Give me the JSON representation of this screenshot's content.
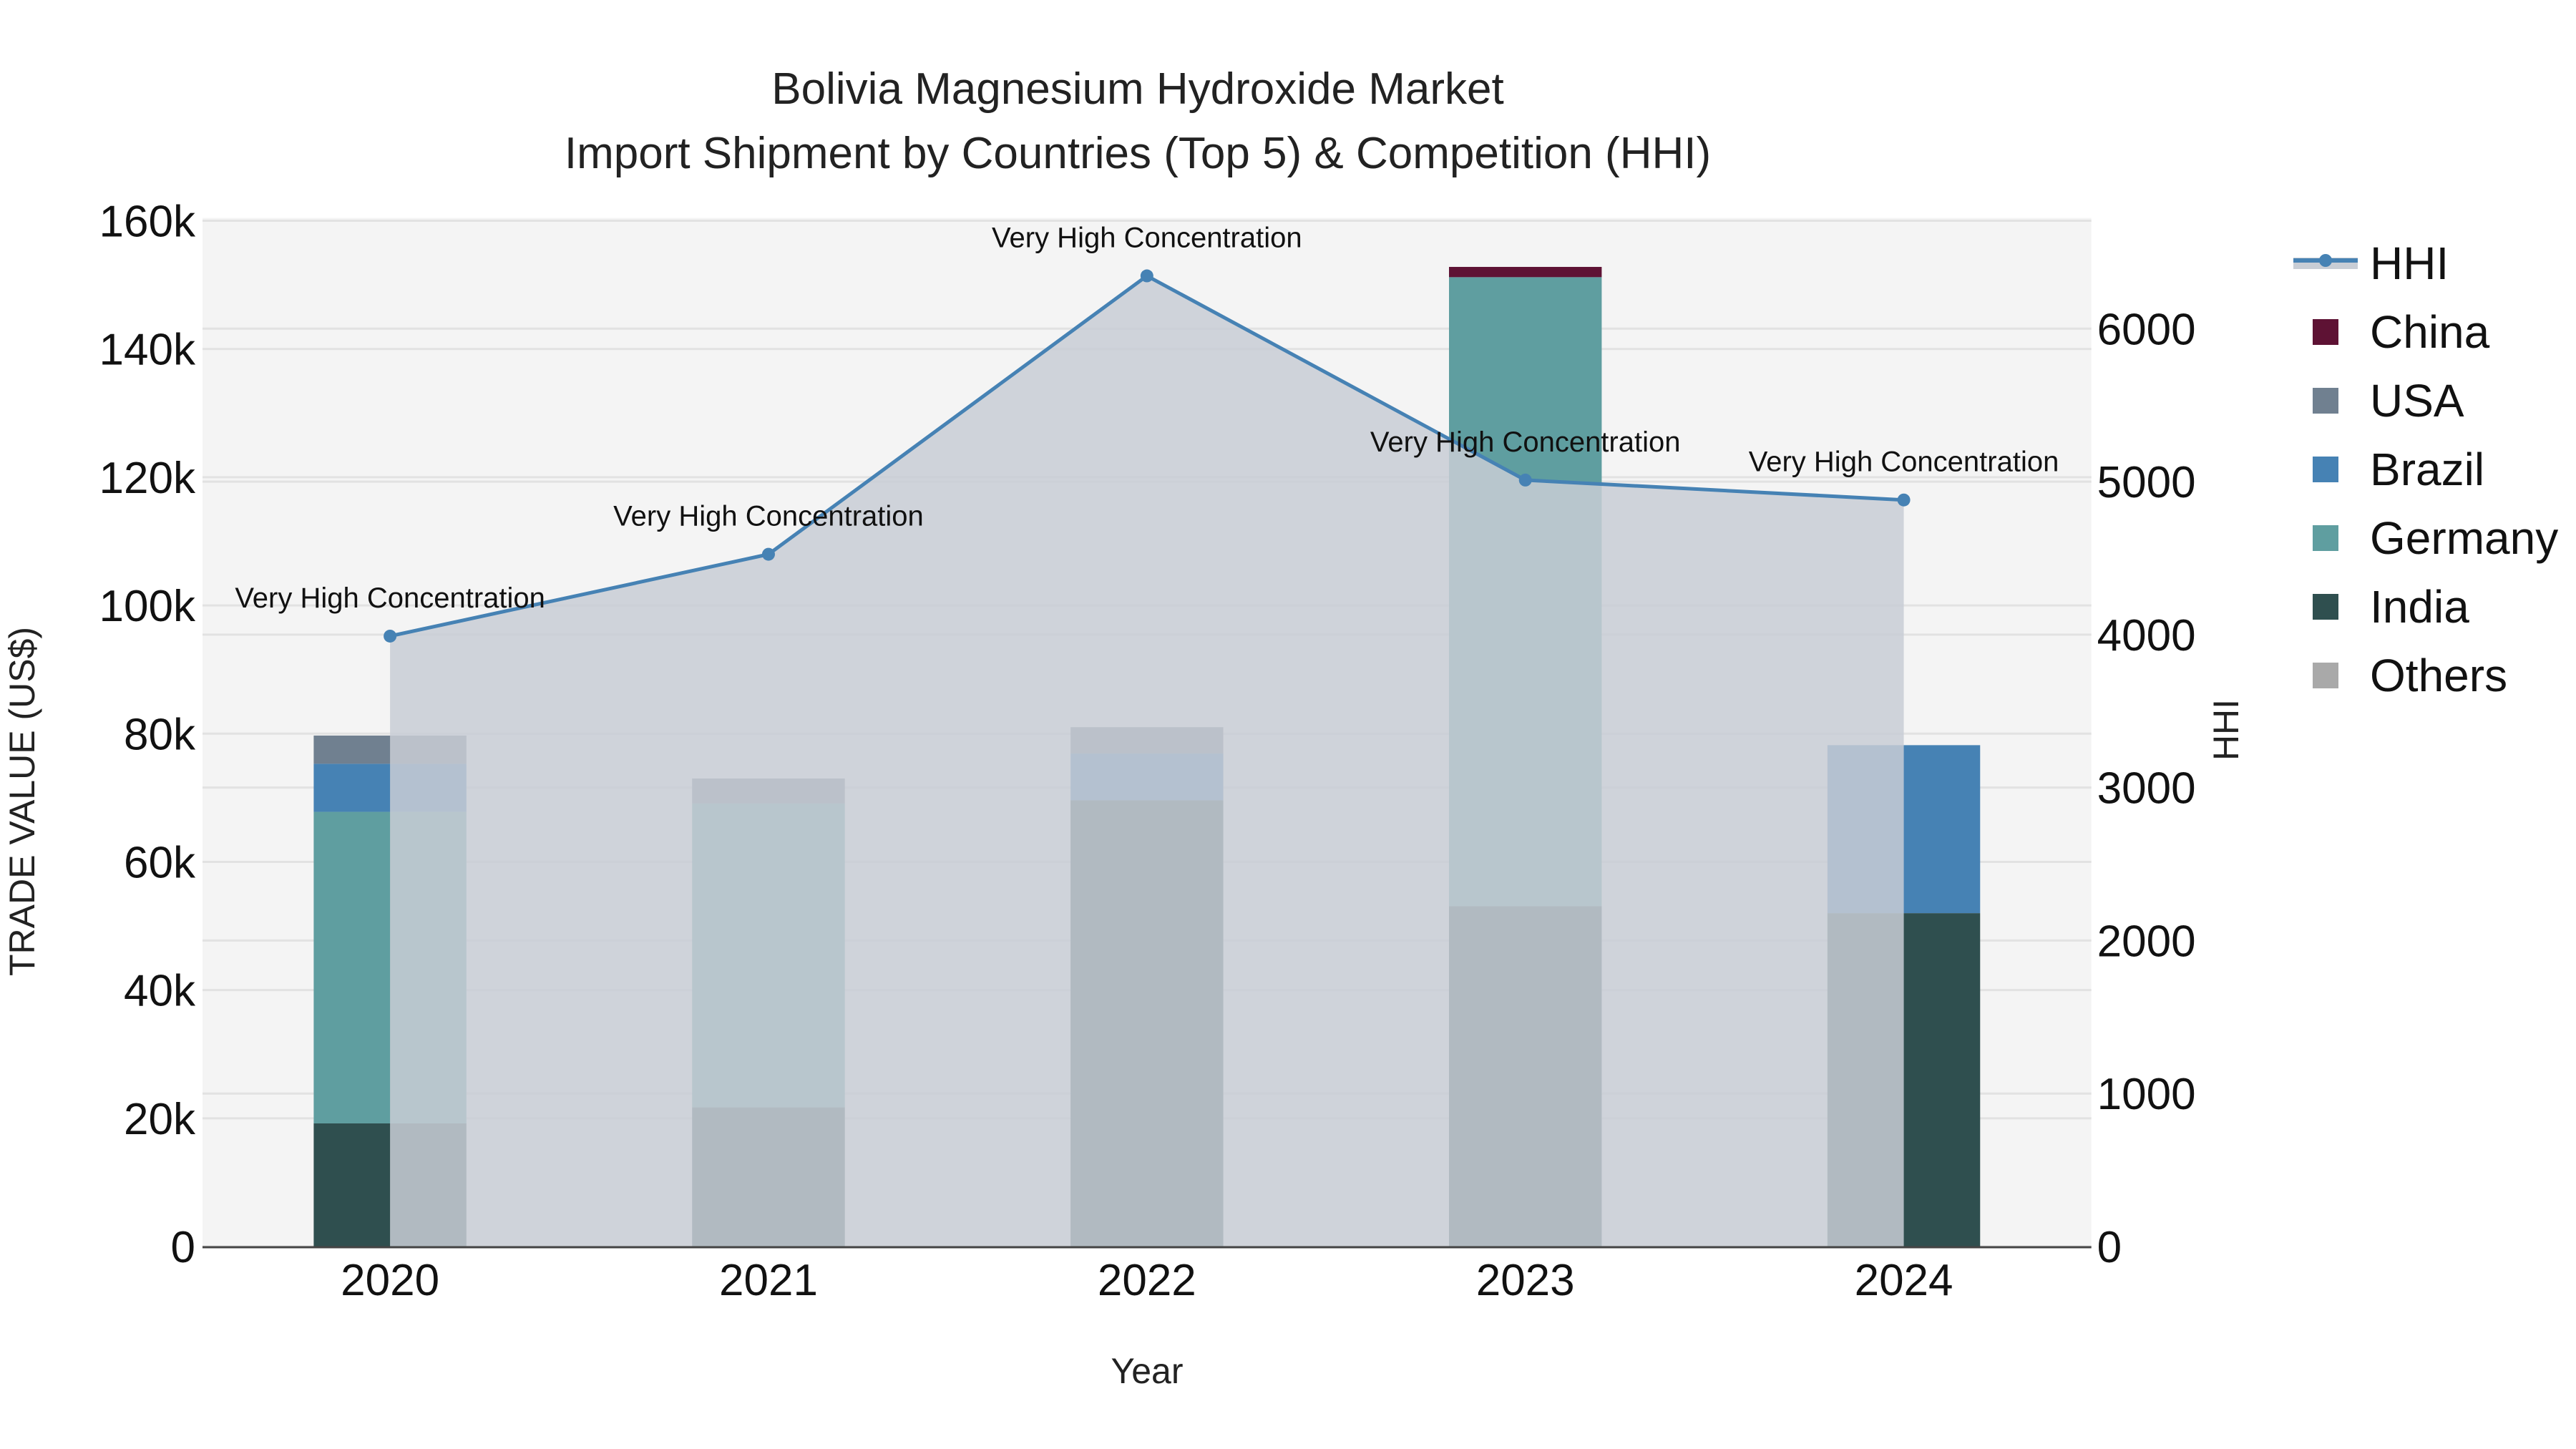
{
  "chart_data": {
    "type": "bar",
    "stacked": true,
    "title": "Bolivia Magnesium Hydroxide Market",
    "subtitle": "Import Shipment by Countries (Top 5) & Competition (HHI)",
    "xlabel": "Year",
    "ylabel": "TRADE VALUE (US$)",
    "y2label": "HHI",
    "categories": [
      "2020",
      "2021",
      "2022",
      "2023",
      "2024"
    ],
    "ylim": [
      0,
      160000
    ],
    "y2lim": [
      0,
      6700
    ],
    "yticks": [
      "0",
      "20k",
      "40k",
      "60k",
      "80k",
      "100k",
      "120k",
      "140k",
      "160k"
    ],
    "y2ticks": [
      "0",
      "1000",
      "2000",
      "3000",
      "4000",
      "5000",
      "6000"
    ],
    "grid": true,
    "legend_position": "right",
    "series": [
      {
        "name": "India",
        "color": "#2F4F4F",
        "values": [
          19200,
          21700,
          69600,
          53100,
          52000
        ]
      },
      {
        "name": "Germany",
        "color": "#5F9EA0",
        "values": [
          48600,
          47400,
          0,
          98100,
          0
        ]
      },
      {
        "name": "Brazil",
        "color": "#4682B4",
        "values": [
          7500,
          0,
          7300,
          0,
          26200
        ]
      },
      {
        "name": "USA",
        "color": "#708090",
        "values": [
          4400,
          3900,
          4100,
          0,
          0
        ]
      },
      {
        "name": "China",
        "color": "#5E1234",
        "values": [
          0,
          0,
          0,
          1600,
          0
        ]
      },
      {
        "name": "Others",
        "color": "#A9A9A9",
        "values": [
          0,
          0,
          0,
          0,
          0
        ]
      }
    ],
    "line_series": {
      "name": "HHI",
      "axis": "y2",
      "color": "#4682B4",
      "fill": "#C8CDD5",
      "values": [
        3990,
        4525,
        6345,
        5010,
        4880
      ],
      "annotations": [
        "Very High Concentration",
        "Very High Concentration",
        "Very High Concentration",
        "Very High Concentration",
        "Very High Concentration"
      ]
    }
  },
  "legend": {
    "items": [
      {
        "label": "HHI",
        "color": "#4682B4",
        "kind": "line"
      },
      {
        "label": "China",
        "color": "#5E1234",
        "kind": "box"
      },
      {
        "label": "USA",
        "color": "#708090",
        "kind": "box"
      },
      {
        "label": "Brazil",
        "color": "#4682B4",
        "kind": "box"
      },
      {
        "label": "Germany",
        "color": "#5F9EA0",
        "kind": "box"
      },
      {
        "label": "India",
        "color": "#2F4F4F",
        "kind": "box"
      },
      {
        "label": "Others",
        "color": "#A9A9A9",
        "kind": "box"
      }
    ]
  }
}
